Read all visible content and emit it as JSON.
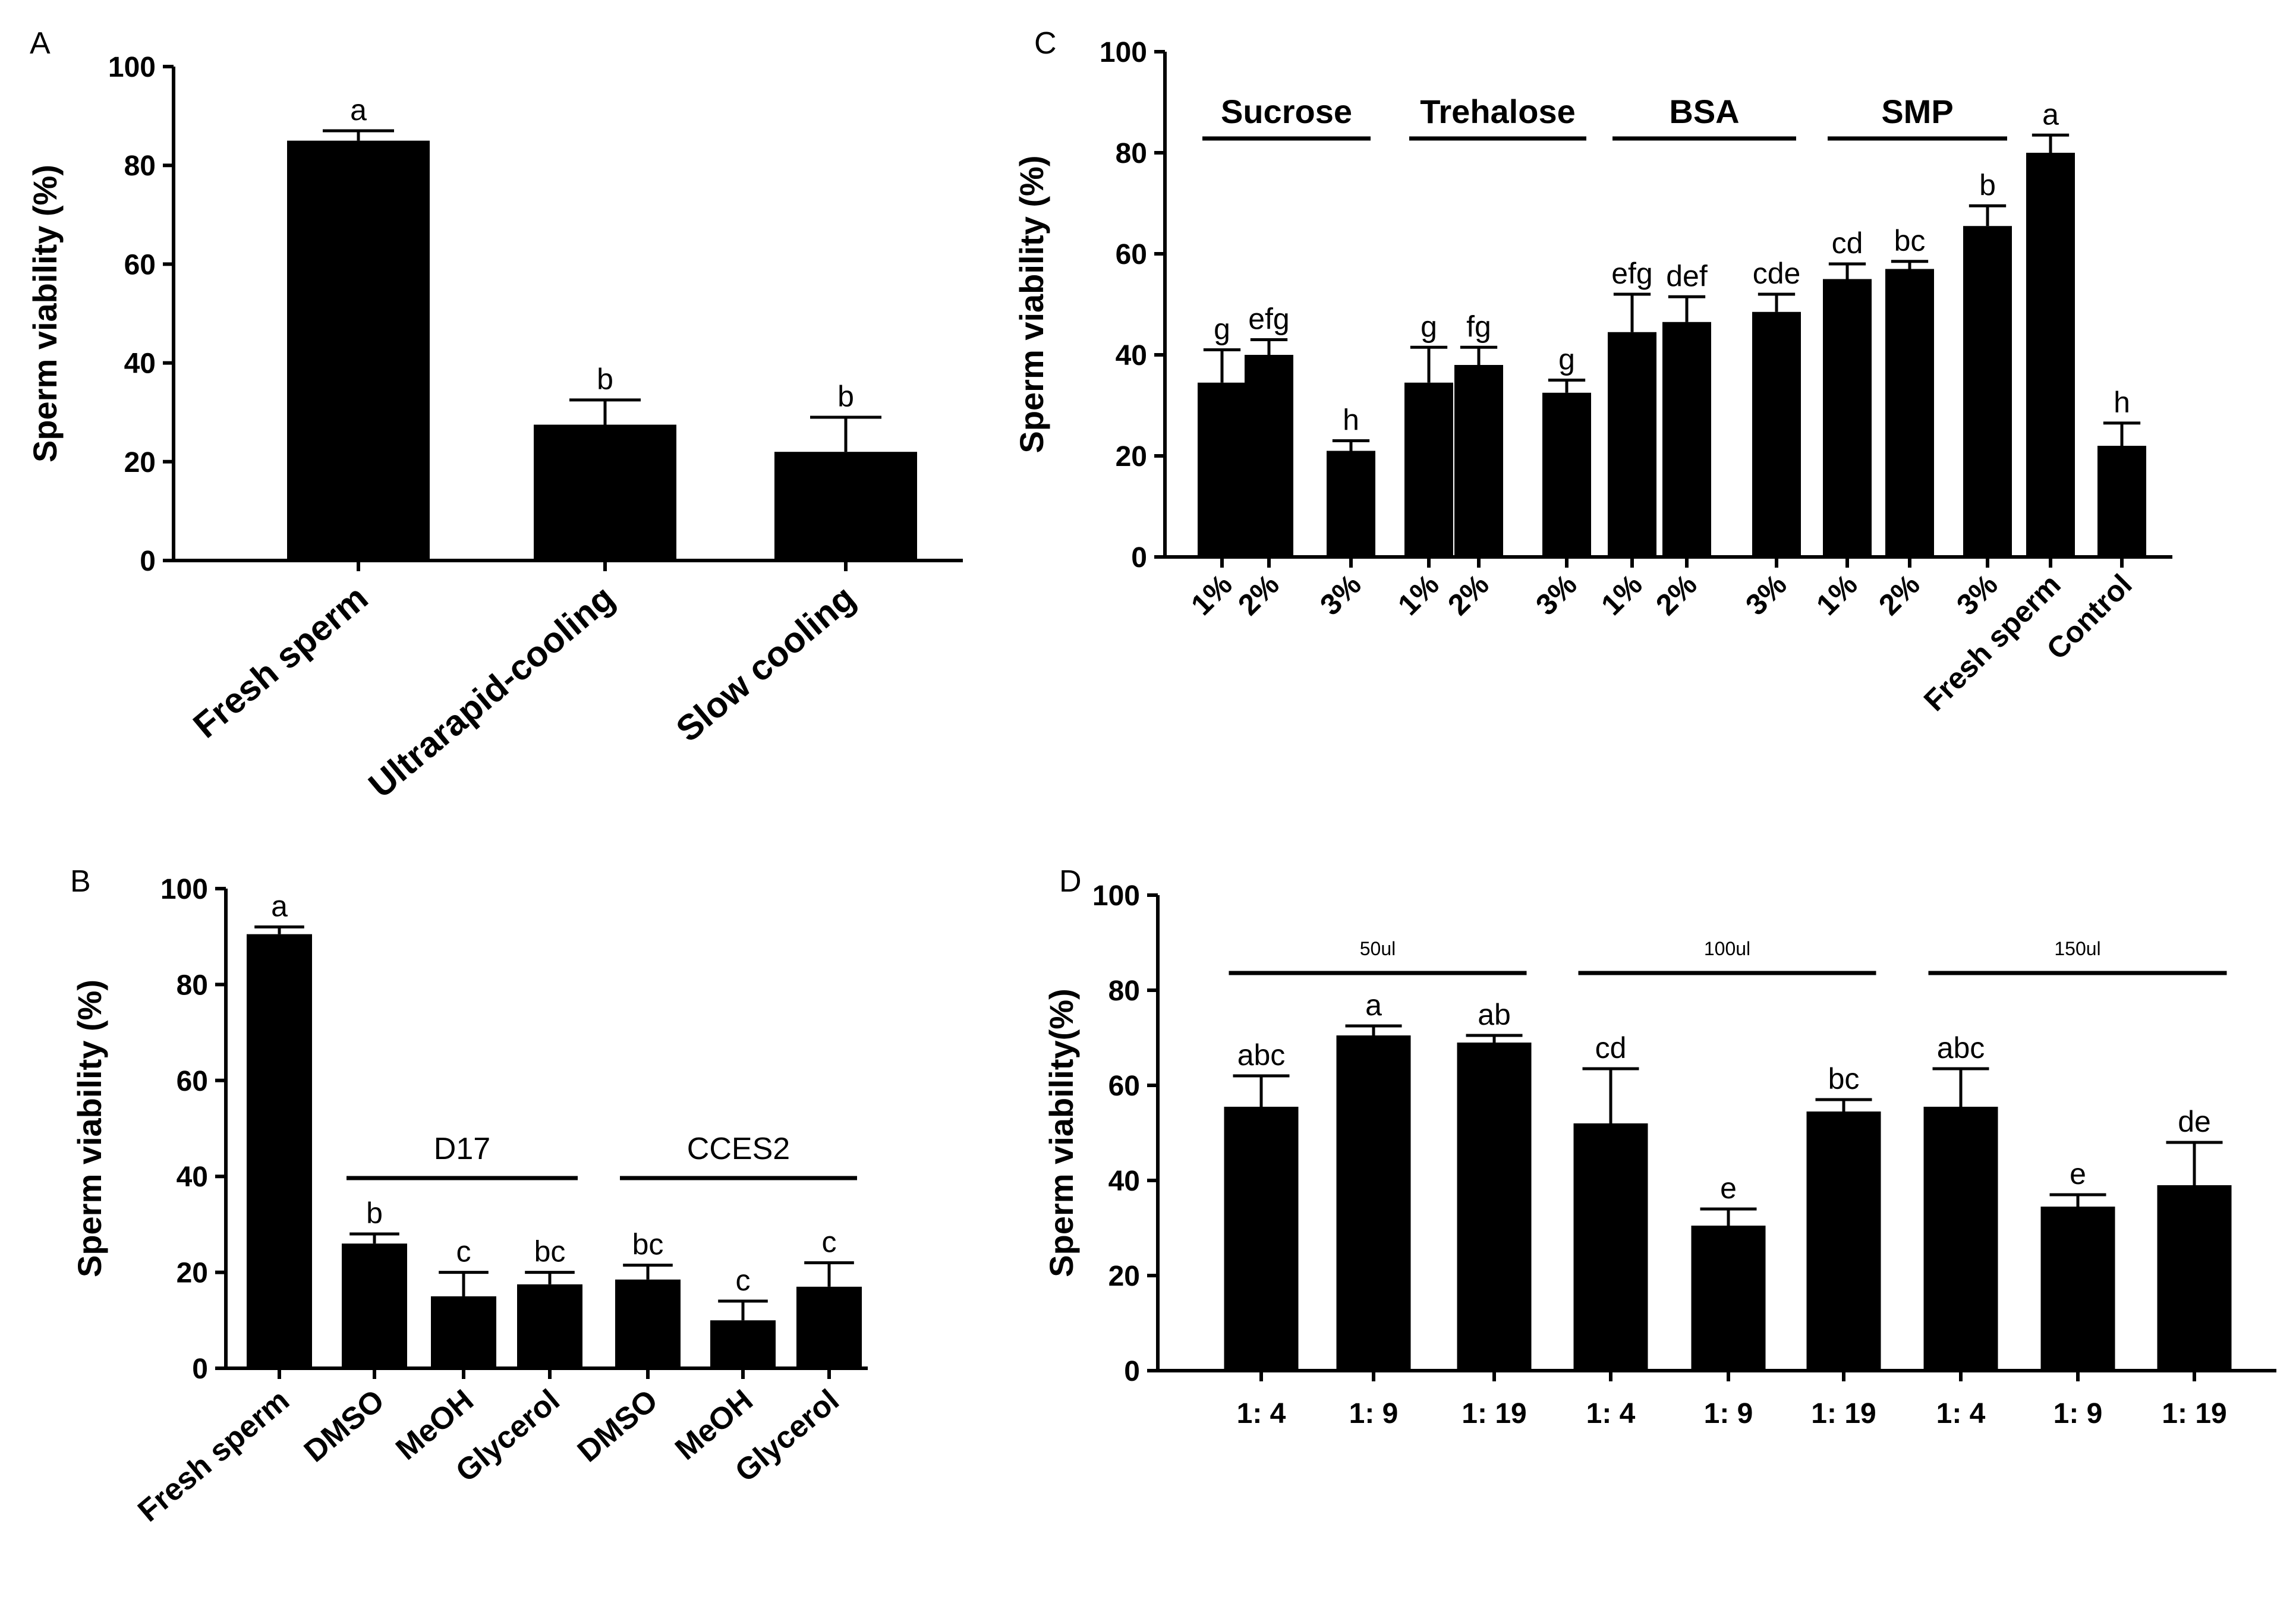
{
  "chart_data": [
    {
      "panel": "A",
      "type": "bar",
      "ylabel": "Sperm viability (%)",
      "ylim": [
        0,
        100
      ],
      "yticks": [
        0,
        20,
        40,
        60,
        80,
        100
      ],
      "categories": [
        "Fresh sperm",
        "Ultrarapid-cooling",
        "Slow cooling"
      ],
      "values": [
        85,
        27.5,
        22
      ],
      "errors": [
        2,
        5,
        7
      ],
      "significance": [
        "a",
        "b",
        "b"
      ],
      "groups": []
    },
    {
      "panel": "B",
      "type": "bar",
      "ylabel": "Sperm viability (%)",
      "ylim": [
        0,
        100
      ],
      "yticks": [
        0,
        20,
        40,
        60,
        80,
        100
      ],
      "categories": [
        "Fresh sperm",
        "DMSO",
        "MeOH",
        "Glycerol",
        "DMSO",
        "MeOH",
        "Glycerol"
      ],
      "values": [
        90.5,
        26,
        15,
        17.5,
        18.5,
        10,
        17
      ],
      "errors": [
        1.5,
        2,
        5,
        2.5,
        3,
        4,
        5
      ],
      "significance": [
        "a",
        "b",
        "c",
        "bc",
        "bc",
        "c",
        "c"
      ],
      "groups": [
        {
          "label": "D17",
          "from": 1,
          "to": 3
        },
        {
          "label": "CCES2",
          "from": 4,
          "to": 6
        }
      ]
    },
    {
      "panel": "C",
      "type": "bar",
      "ylabel": "Sperm viability (%)",
      "ylim": [
        0,
        100
      ],
      "yticks": [
        0,
        20,
        40,
        60,
        80,
        100
      ],
      "categories": [
        "1%",
        "2%",
        "3%",
        "1%",
        "2%",
        "3%",
        "1%",
        "2%",
        "3%",
        "1%",
        "2%",
        "3%",
        "Fresh sperm",
        "Control"
      ],
      "values": [
        34.5,
        40,
        21,
        34.5,
        38,
        32.5,
        44.5,
        46.5,
        48.5,
        55,
        57,
        65.5,
        80,
        22
      ],
      "errors": [
        6.5,
        3,
        2,
        7,
        3.5,
        2.5,
        7.5,
        5,
        3.5,
        3,
        1.5,
        4,
        3.5,
        4.5
      ],
      "significance": [
        "g",
        "efg",
        "h",
        "g",
        "fg",
        "g",
        "efg",
        "def",
        "cde",
        "cd",
        "bc",
        "b",
        "a",
        "h"
      ],
      "groups": [
        {
          "label": "Sucrose",
          "from": 0,
          "to": 2
        },
        {
          "label": "Trehalose",
          "from": 3,
          "to": 5
        },
        {
          "label": "BSA",
          "from": 6,
          "to": 8
        },
        {
          "label": "SMP",
          "from": 9,
          "to": 11
        }
      ]
    },
    {
      "panel": "D",
      "type": "bar",
      "ylabel": "Sperm viability(%)",
      "ylim": [
        0,
        100
      ],
      "yticks": [
        0,
        20,
        40,
        60,
        80,
        100
      ],
      "categories": [
        "1: 4",
        "1: 9",
        "1: 19",
        "1: 4",
        "1: 9",
        "1: 19",
        "1: 4",
        "1: 9",
        "1: 19"
      ],
      "values": [
        55.5,
        70.5,
        69,
        52,
        30.5,
        54.5,
        55.5,
        34.5,
        39
      ],
      "errors": [
        6.5,
        2,
        1.5,
        11.5,
        3.5,
        2.5,
        8,
        2.5,
        9
      ],
      "significance": [
        "abc",
        "a",
        "ab",
        "cd",
        "e",
        "bc",
        "abc",
        "e",
        "de"
      ],
      "groups": [
        {
          "label": "50ul",
          "from": 0,
          "to": 2
        },
        {
          "label": "100ul",
          "from": 3,
          "to": 5
        },
        {
          "label": "150ul",
          "from": 6,
          "to": 8
        }
      ]
    }
  ]
}
